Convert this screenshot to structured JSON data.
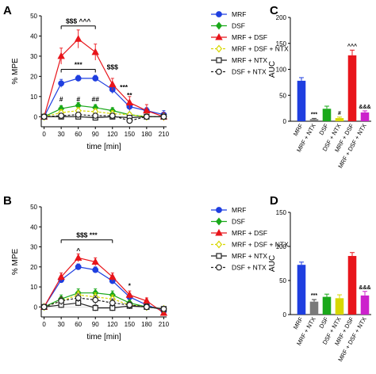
{
  "colors": {
    "MRF": "#1f3fe0",
    "DSF": "#1aa81a",
    "MRF + DSF": "#e8151b",
    "MRF + DSF + NTX": "#d7d700",
    "MRF + NTX": "#222222",
    "DSF + NTX": "#222222",
    "bars": [
      "#1f3fe0",
      "#7a7a7a",
      "#1aa81a",
      "#d7d700",
      "#e8151b",
      "#cc22cc"
    ]
  },
  "chart_data": [
    {
      "panel": "A",
      "type": "line",
      "xlabel": "time [min]",
      "ylabel": "% MPE",
      "x": [
        0,
        30,
        60,
        90,
        120,
        150,
        180,
        210
      ],
      "xlim": [
        -5,
        215
      ],
      "ylim": [
        -5,
        50
      ],
      "yticks": [
        0,
        10,
        20,
        30,
        40,
        50
      ],
      "legend_position": "top-right",
      "series": [
        {
          "name": "MRF",
          "marker": "circle",
          "y": [
            0,
            16.5,
            19,
            19,
            13.5,
            5,
            3,
            1
          ],
          "err": [
            0.8,
            2,
            1.5,
            1.5,
            2,
            2,
            1.5,
            2
          ]
        },
        {
          "name": "DSF",
          "marker": "diamond",
          "y": [
            0,
            4,
            5.5,
            4.5,
            3,
            1,
            0,
            0
          ],
          "err": [
            0.5,
            1.5,
            1.5,
            1.5,
            1.5,
            1,
            1,
            1
          ]
        },
        {
          "name": "MRF + DSF",
          "marker": "triangle",
          "y": [
            0,
            30,
            38.5,
            32,
            16,
            7,
            3,
            0
          ],
          "err": [
            0.8,
            4,
            4.5,
            4,
            3,
            3,
            3,
            2
          ]
        },
        {
          "name": "MRF + DSF + NTX",
          "marker": "diamond-open",
          "y": [
            0,
            2,
            3,
            2.5,
            1.5,
            1,
            0,
            0
          ],
          "err": [
            0.5,
            1.5,
            1.5,
            1.5,
            1.5,
            1,
            1,
            1
          ]
        },
        {
          "name": "MRF + NTX",
          "marker": "square-open",
          "y": [
            0,
            0,
            0,
            -0.5,
            0,
            -0.5,
            0,
            0
          ],
          "err": [
            0.5,
            1,
            1,
            1,
            1,
            1,
            1,
            1
          ]
        },
        {
          "name": "DSF + NTX",
          "marker": "circle-open",
          "y": [
            0,
            0.5,
            1,
            0.5,
            0.5,
            -2,
            0,
            0
          ],
          "err": [
            0.5,
            1,
            1,
            1,
            1,
            1,
            1,
            1
          ]
        }
      ],
      "annotations": [
        {
          "text": "$$$ ^^^",
          "bracket": [
            30,
            90
          ],
          "y": 45
        },
        {
          "text": "***",
          "bracket": [
            30,
            90
          ],
          "y": 23.5
        },
        {
          "text": "$$$",
          "x": 120,
          "y": 23.5
        },
        {
          "text": "***",
          "x": 140,
          "y": 13.5
        },
        {
          "text": "**",
          "x": 150,
          "y": 9.5
        },
        {
          "text": "#",
          "x": 30,
          "y": 7.5
        },
        {
          "text": "#",
          "x": 60,
          "y": 7.5
        },
        {
          "text": "##",
          "x": 90,
          "y": 7.5
        }
      ]
    },
    {
      "panel": "B",
      "type": "line",
      "xlabel": "time [min]",
      "ylabel": "% MPE",
      "x": [
        0,
        30,
        60,
        90,
        120,
        150,
        180,
        210
      ],
      "xlim": [
        -5,
        215
      ],
      "ylim": [
        -5,
        50
      ],
      "yticks": [
        0,
        10,
        20,
        30,
        40,
        50
      ],
      "legend_position": "top-right",
      "series": [
        {
          "name": "MRF",
          "marker": "circle",
          "y": [
            0,
            13.5,
            20,
            18.5,
            13,
            5,
            1,
            -2
          ],
          "err": [
            0.5,
            1.5,
            1.5,
            1.5,
            1.5,
            1.5,
            1.5,
            1
          ]
        },
        {
          "name": "DSF",
          "marker": "diamond",
          "y": [
            0,
            4,
            7,
            7,
            6,
            2,
            0,
            -1
          ],
          "err": [
            0.5,
            2,
            2,
            2,
            2,
            1.5,
            1.5,
            1
          ]
        },
        {
          "name": "MRF + DSF",
          "marker": "triangle",
          "y": [
            0,
            15,
            24.5,
            22.5,
            15,
            6,
            3,
            -3
          ],
          "err": [
            0.5,
            2,
            2,
            2,
            2,
            2,
            1.5,
            1
          ]
        },
        {
          "name": "MRF + DSF + NTX",
          "marker": "diamond-open",
          "y": [
            0,
            3,
            6,
            5,
            4,
            1,
            0,
            -1
          ],
          "err": [
            0.5,
            2,
            2,
            2,
            2,
            1.5,
            1.5,
            1
          ]
        },
        {
          "name": "MRF + NTX",
          "marker": "square-open",
          "y": [
            0,
            1,
            2,
            -0.5,
            -0.5,
            0.5,
            0,
            -1
          ],
          "err": [
            0.5,
            1.5,
            1.5,
            1.5,
            1.5,
            1.5,
            1.5,
            1
          ]
        },
        {
          "name": "DSF + NTX",
          "marker": "circle-open",
          "y": [
            0,
            3,
            4.5,
            3.5,
            2,
            1,
            0,
            -1
          ],
          "err": [
            0.5,
            2,
            2,
            2,
            2,
            1.5,
            1.5,
            1
          ]
        }
      ],
      "annotations": [
        {
          "text": "$$$   ***",
          "bracket": [
            30,
            120
          ],
          "y": 33.5
        },
        {
          "text": "^",
          "x": 60,
          "y": 27
        },
        {
          "text": "*",
          "x": 150,
          "y": 9.5
        }
      ]
    },
    {
      "panel": "C",
      "type": "bar",
      "ylabel": "AUC",
      "categories": [
        "MRF",
        "MRF + NTX",
        "DSF",
        "DSF + NTX",
        "MRF + DSF",
        "MRF + DSF + NTX"
      ],
      "values": [
        78,
        4,
        24,
        6,
        127,
        17
      ],
      "errors": [
        6,
        1.5,
        5,
        2,
        10,
        3
      ],
      "ylim": [
        0,
        200
      ],
      "yticks": [
        0,
        50,
        100,
        150,
        200
      ],
      "annotations": [
        "",
        "***",
        "",
        "#",
        "^^^",
        "&&&"
      ]
    },
    {
      "panel": "D",
      "type": "bar",
      "ylabel": "AUC",
      "categories": [
        "MRF",
        "MRF + NTX",
        "DSF",
        "DSF + NTX",
        "MRF + DSF",
        "MRF + DSF + NTX"
      ],
      "values": [
        73,
        19,
        26,
        24,
        86,
        28
      ],
      "errors": [
        4,
        3,
        4,
        5,
        5,
        6
      ],
      "ylim": [
        0,
        150
      ],
      "yticks": [
        0,
        50,
        100,
        150
      ],
      "annotations": [
        "",
        "***",
        "",
        "",
        "",
        "&&&"
      ]
    }
  ]
}
